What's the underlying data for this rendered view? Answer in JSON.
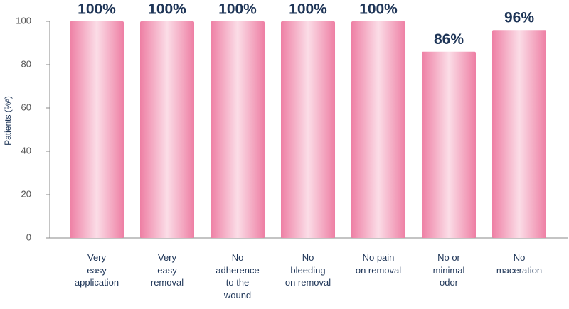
{
  "chart_data": {
    "type": "bar",
    "y_label": "Patients (%ᵃ)",
    "categories": [
      "Very\neasy\napplication",
      "Very\neasy\nremoval",
      "No\nadherence\nto the\nwound",
      "No\nbleeding\non removal",
      "No pain\non removal",
      "No or\nminimal\nodor",
      "No\nmaceration"
    ],
    "values": [
      100,
      100,
      100,
      100,
      100,
      86,
      96
    ],
    "value_labels": [
      "100%",
      "100%",
      "100%",
      "100%",
      "100%",
      "86%",
      "96%"
    ],
    "color": "#ee7fa4",
    "ylim": [
      0,
      100
    ],
    "yticks": [
      0,
      20,
      40,
      60,
      80,
      100
    ]
  }
}
